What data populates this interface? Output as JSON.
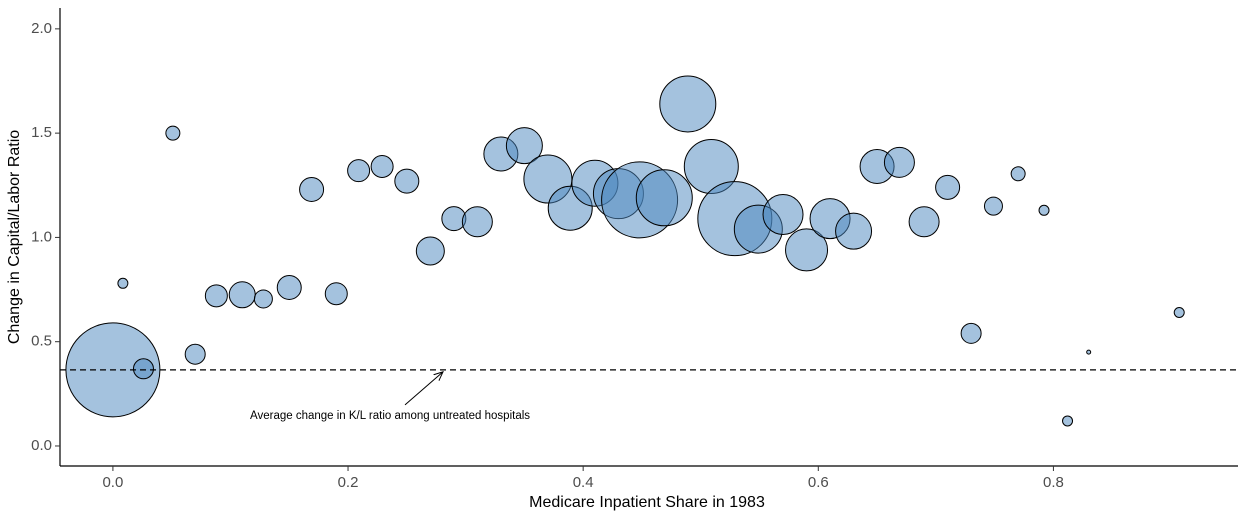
{
  "chart_data": {
    "type": "scatter",
    "x_label": "Medicare Inpatient Share in 1983",
    "y_label": "Change in Capital/Labor Ratio",
    "x": [
      0,
      0.026,
      0.0085,
      0.051,
      0.07,
      0.088,
      0.11,
      0.128,
      0.15,
      0.169,
      0.19,
      0.209,
      0.229,
      0.25,
      0.27,
      0.29,
      0.31,
      0.33,
      0.35,
      0.37,
      0.389,
      0.41,
      0.43,
      0.448,
      0.469,
      0.489,
      0.509,
      0.529,
      0.549,
      0.57,
      0.59,
      0.61,
      0.63,
      0.65,
      0.669,
      0.69,
      0.71,
      0.73,
      0.749,
      0.77,
      0.792,
      0.83,
      0.812,
      0.907
    ],
    "y": [
      0.365,
      0.37,
      0.78,
      1.5,
      0.44,
      0.72,
      0.725,
      0.705,
      0.76,
      1.23,
      0.73,
      1.32,
      1.34,
      1.27,
      0.935,
      1.09,
      1.075,
      1.4,
      1.44,
      1.28,
      1.14,
      1.26,
      1.21,
      1.18,
      1.19,
      1.64,
      1.34,
      1.09,
      1.04,
      1.11,
      0.94,
      1.09,
      1.03,
      1.34,
      1.36,
      1.075,
      1.24,
      0.54,
      1.15,
      1.305,
      1.13,
      0.45,
      0.12,
      0.64
    ],
    "sizes": [
      2209,
      100,
      25,
      49,
      100,
      121,
      169,
      81,
      144,
      144,
      121,
      121,
      121,
      144,
      196,
      144,
      225,
      289,
      324,
      576,
      484,
      529,
      625,
      1444,
      784,
      784,
      729,
      1369,
      576,
      400,
      441,
      400,
      324,
      289,
      225,
      225,
      144,
      100,
      81,
      49,
      25,
      4,
      25,
      25
    ],
    "color": "#4a86bd",
    "reference_line": 0.365,
    "annotation": "Average change in K/L ratio among untreated hospitals",
    "xlim": [
      -0.045,
      0.957
    ],
    "ylim": [
      -0.096,
      2.1
    ],
    "xticks": [
      {
        "value": 0,
        "label": "0.0"
      },
      0.2,
      0.4,
      0.6,
      0.8
    ],
    "yticks": [
      {
        "value": 0,
        "label": "0.0"
      },
      0.5,
      {
        "value": 1,
        "label": "1.0"
      },
      1.5,
      {
        "value": 2,
        "label": "2.0"
      }
    ]
  }
}
